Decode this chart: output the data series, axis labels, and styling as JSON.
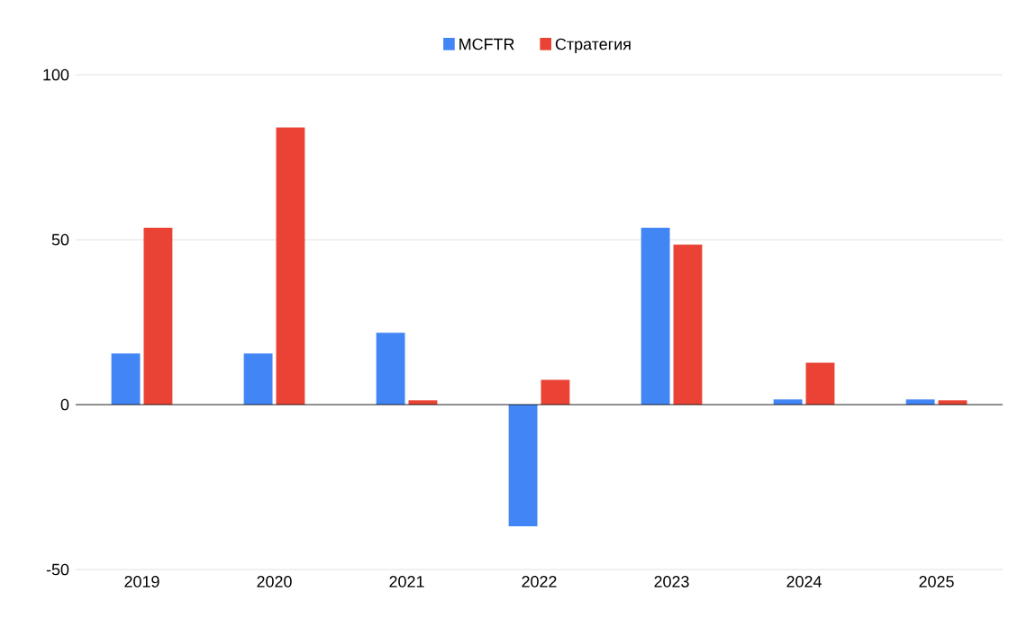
{
  "chart_data": {
    "type": "bar",
    "categories": [
      "2019",
      "2020",
      "2021",
      "2022",
      "2023",
      "2024",
      "2025"
    ],
    "series": [
      {
        "name": "MCFTR",
        "color": "#4285f4",
        "values": [
          15.5,
          15.5,
          21.8,
          -36.9,
          53.6,
          1.6,
          1.6
        ]
      },
      {
        "name": "Стратегия",
        "color": "#ea4335",
        "values": [
          53.6,
          84,
          1.3,
          7.5,
          48.5,
          12.7,
          1.3
        ]
      }
    ],
    "ylim": [
      -50,
      100
    ],
    "yticks": [
      -50,
      0,
      50,
      100
    ],
    "grid": "y",
    "legend": "top"
  }
}
